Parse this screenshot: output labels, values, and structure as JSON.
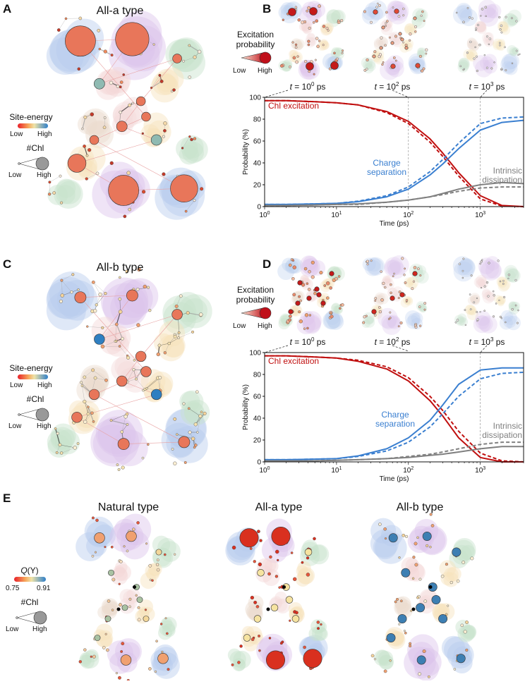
{
  "panels": {
    "A": {
      "label": "A",
      "title": "All-a type"
    },
    "B": {
      "label": "B"
    },
    "C": {
      "label": "C",
      "title": "All-b type"
    },
    "D": {
      "label": "D"
    },
    "E": {
      "label": "E",
      "titles": [
        "Natural type",
        "All-a type",
        "All-b type"
      ]
    }
  },
  "legend_network": {
    "site_energy": "Site-energy",
    "low": "Low",
    "high": "High",
    "nchl": "#Chl",
    "nchl_low": "Low",
    "nchl_high": "High"
  },
  "legend_excitation": {
    "line1": "Excitation",
    "line2": "probability",
    "low": "Low",
    "high": "High"
  },
  "legend_E": {
    "qy_q": "Q",
    "qy_y": "(Y)",
    "qy_paren_open": "(",
    "qy_paren_close": ")",
    "min": "0.75",
    "max": "0.91",
    "nchl": "#Chl",
    "low": "Low",
    "high": "High"
  },
  "time_labels": [
    {
      "var": "t",
      "base": " = 10",
      "exp": "0",
      "unit": " ps"
    },
    {
      "var": "t",
      "base": " = 10",
      "exp": "2",
      "unit": " ps"
    },
    {
      "var": "t",
      "base": " = 10",
      "exp": "3",
      "unit": " ps"
    }
  ],
  "colors": {
    "excitation": "#c00f0f",
    "charge": "#3a7fd0",
    "dissipation": "#808080"
  },
  "chart_data": [
    {
      "panel": "B",
      "type": "line",
      "xlabel": "Time (ps)",
      "ylabel": "Probability (%)",
      "xscale": "log",
      "xlim": [
        1,
        4000
      ],
      "ylim": [
        0,
        100
      ],
      "yticks": [
        "0",
        "20",
        "40",
        "60",
        "80",
        "100"
      ],
      "xticks": [
        {
          "base": "10",
          "exp": "0"
        },
        {
          "base": "10",
          "exp": "1"
        },
        {
          "base": "10",
          "exp": "2"
        },
        {
          "base": "10",
          "exp": "3"
        }
      ],
      "vlines": [
        100,
        1000
      ],
      "x": [
        1,
        2,
        5,
        10,
        20,
        50,
        100,
        200,
        300,
        500,
        1000,
        2000,
        4000
      ],
      "annotations": {
        "excitation": "Chl excitation",
        "charge_1": "Charge",
        "charge_2": "separation",
        "diss_1": "Intrinsic",
        "diss_2": "dissipation"
      },
      "series": [
        {
          "name": "Chl excitation",
          "style": "solid",
          "color": "#c00f0f",
          "values": [
            97,
            97,
            96,
            95,
            93,
            87,
            78,
            62,
            49,
            31,
            10,
            1,
            0
          ]
        },
        {
          "name": "Chl excitation",
          "style": "dashed",
          "color": "#c00f0f",
          "values": [
            97,
            97,
            96,
            95,
            93,
            86,
            76,
            59,
            46,
            28,
            7,
            0.5,
            0
          ]
        },
        {
          "name": "Charge separation",
          "style": "solid",
          "color": "#3a7fd0",
          "values": [
            2,
            2,
            2.5,
            3,
            4.5,
            9,
            16,
            29,
            39,
            53,
            70,
            77,
            79
          ]
        },
        {
          "name": "Charge separation",
          "style": "dashed",
          "color": "#3a7fd0",
          "values": [
            2,
            2,
            2.5,
            3,
            5,
            10,
            18,
            32,
            43,
            58,
            76,
            81,
            82
          ]
        },
        {
          "name": "Intrinsic dissipation",
          "style": "solid",
          "color": "#808080",
          "values": [
            1,
            1,
            1.5,
            2,
            2.5,
            4,
            6,
            9,
            12,
            16,
            20,
            22,
            21
          ]
        },
        {
          "name": "Intrinsic dissipation",
          "style": "dashed",
          "color": "#808080",
          "values": [
            1,
            1,
            1.5,
            2,
            2,
            4,
            6,
            9,
            11,
            14,
            17,
            18,
            18
          ]
        }
      ]
    },
    {
      "panel": "D",
      "type": "line",
      "xlabel": "Time (ps)",
      "ylabel": "Probability (%)",
      "xscale": "log",
      "xlim": [
        1,
        4000
      ],
      "ylim": [
        0,
        100
      ],
      "yticks": [
        "0",
        "20",
        "40",
        "60",
        "80",
        "100"
      ],
      "xticks": [
        {
          "base": "10",
          "exp": "0"
        },
        {
          "base": "10",
          "exp": "1"
        },
        {
          "base": "10",
          "exp": "2"
        },
        {
          "base": "10",
          "exp": "3"
        }
      ],
      "vlines": [
        1000
      ],
      "x": [
        1,
        2,
        5,
        10,
        20,
        50,
        100,
        200,
        300,
        500,
        1000,
        2000,
        4000
      ],
      "annotations": {
        "excitation": "Chl excitation",
        "charge_1": "Charge",
        "charge_2": "separation",
        "diss_1": "Intrinsic",
        "diss_2": "dissipation"
      },
      "series": [
        {
          "name": "Chl excitation",
          "style": "solid",
          "color": "#c00f0f",
          "values": [
            97,
            97,
            96,
            95,
            92,
            85,
            74,
            56,
            42,
            22,
            4,
            0,
            0
          ]
        },
        {
          "name": "Chl excitation",
          "style": "dashed",
          "color": "#c00f0f",
          "values": [
            97,
            97,
            96,
            95,
            93,
            87,
            77,
            60,
            47,
            28,
            8,
            1,
            0
          ]
        },
        {
          "name": "Charge separation",
          "style": "solid",
          "color": "#3a7fd0",
          "values": [
            2,
            2,
            2.5,
            3,
            5.5,
            12,
            22,
            38,
            52,
            71,
            84,
            86,
            86
          ]
        },
        {
          "name": "Charge separation",
          "style": "dashed",
          "color": "#3a7fd0",
          "values": [
            2,
            2,
            2.5,
            3,
            5,
            10,
            18,
            32,
            44,
            60,
            76,
            81,
            82
          ]
        },
        {
          "name": "Intrinsic dissipation",
          "style": "solid",
          "color": "#808080",
          "values": [
            1,
            1,
            1,
            1.5,
            2,
            3,
            4,
            6,
            7,
            9,
            12,
            14,
            14
          ]
        },
        {
          "name": "Intrinsic dissipation",
          "style": "dashed",
          "color": "#808080",
          "values": [
            1,
            1,
            1,
            1.5,
            2,
            3,
            5,
            7,
            9,
            12,
            16,
            18,
            18
          ]
        }
      ]
    }
  ]
}
